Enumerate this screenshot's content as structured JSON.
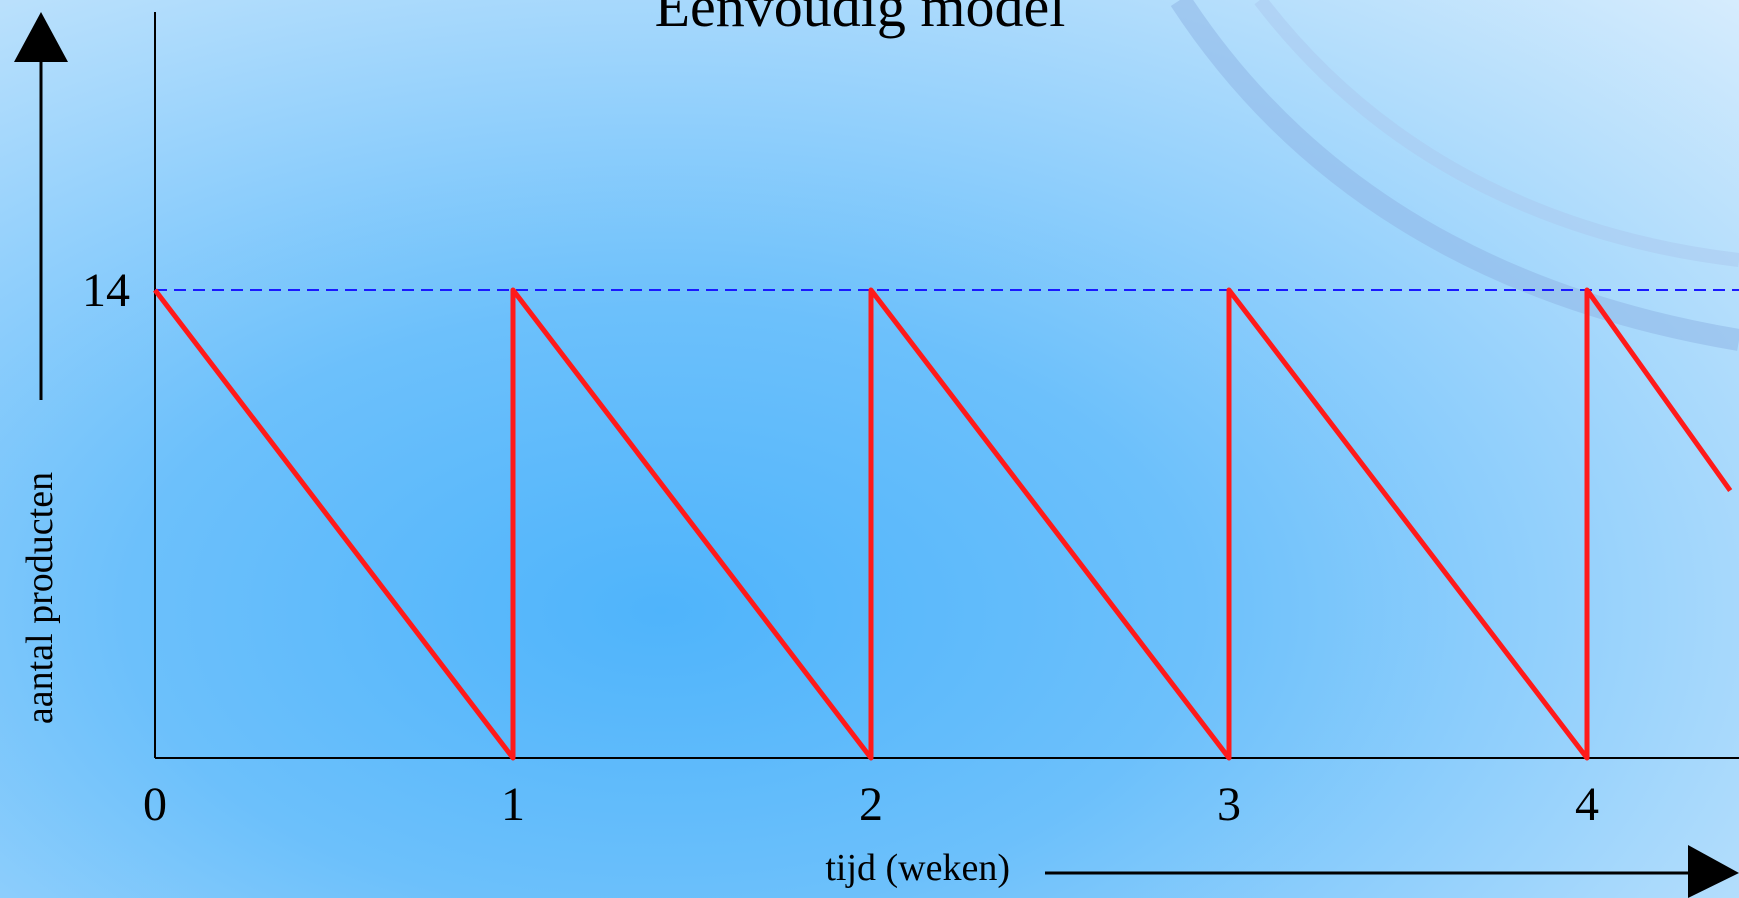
{
  "chart_data": {
    "type": "line",
    "title": "Eenvoudig model",
    "xlabel": "tijd (weken)",
    "ylabel": "aantal producten",
    "x_ticks": [
      "0",
      "1",
      "2",
      "3",
      "4"
    ],
    "y_ticks": [
      "14"
    ],
    "reference_line": {
      "y": 14,
      "style": "dashed",
      "color": "#1a1aff"
    },
    "series": [
      {
        "color": "#ff1a1a",
        "x": [
          0,
          1,
          1,
          2,
          2,
          3,
          3,
          4,
          4,
          4.4
        ],
        "y": [
          14,
          0,
          14,
          0,
          14,
          0,
          14,
          0,
          14,
          8
        ]
      }
    ],
    "xlim": [
      0,
      4.4
    ],
    "ylim": [
      0,
      14
    ],
    "colors": {
      "axis": "#000000",
      "series": "#ff1a1a",
      "reference": "#1a1aff"
    }
  }
}
